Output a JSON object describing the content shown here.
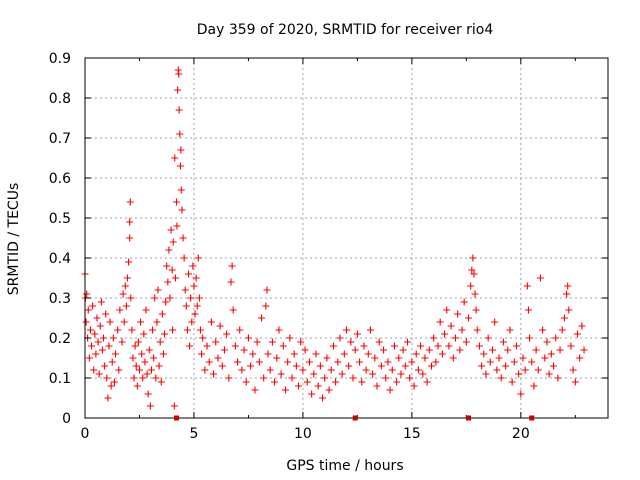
{
  "chart_data": {
    "type": "scatter",
    "title": "Day 359 of 2020, SRMTID for receiver rio4",
    "xlabel": "GPS time / hours",
    "ylabel": "SRMTID / TECUs",
    "xlim": [
      0,
      24
    ],
    "ylim": [
      0,
      0.9
    ],
    "xticks": [
      0,
      5,
      10,
      15,
      20
    ],
    "xtick_labels": [
      "0",
      "5",
      "10",
      "15",
      "20"
    ],
    "yticks": [
      0,
      0.1,
      0.2,
      0.3,
      0.4,
      0.5,
      0.6,
      0.7,
      0.8,
      0.9
    ],
    "ytick_labels": [
      "0",
      "0.1",
      "0.2",
      "0.3",
      "0.4",
      "0.5",
      "0.6",
      "0.7",
      "0.8",
      "0.9"
    ],
    "grid": true,
    "legend": "none",
    "marker": "+",
    "colors": {
      "series": "#ff0000",
      "axis_marks": "#cc0000",
      "grid": "#a0a0a0",
      "frame": "#000000"
    },
    "series": [
      {
        "name": "SRMTID",
        "points": [
          [
            0.0,
            0.36
          ],
          [
            0.02,
            0.3
          ],
          [
            0.05,
            0.24
          ],
          [
            0.08,
            0.31
          ],
          [
            0.12,
            0.2
          ],
          [
            0.15,
            0.27
          ],
          [
            0.2,
            0.15
          ],
          [
            0.25,
            0.22
          ],
          [
            0.3,
            0.18
          ],
          [
            0.35,
            0.28
          ],
          [
            0.4,
            0.12
          ],
          [
            0.45,
            0.21
          ],
          [
            0.5,
            0.16
          ],
          [
            0.55,
            0.25
          ],
          [
            0.6,
            0.19
          ],
          [
            0.65,
            0.11
          ],
          [
            0.7,
            0.23
          ],
          [
            0.75,
            0.29
          ],
          [
            0.8,
            0.17
          ],
          [
            0.85,
            0.2
          ],
          [
            0.9,
            0.13
          ],
          [
            0.95,
            0.26
          ],
          [
            1.0,
            0.1
          ],
          [
            1.05,
            0.05
          ],
          [
            1.1,
            0.18
          ],
          [
            1.15,
            0.24
          ],
          [
            1.2,
            0.08
          ],
          [
            1.25,
            0.14
          ],
          [
            1.3,
            0.2
          ],
          [
            1.35,
            0.09
          ],
          [
            1.4,
            0.16
          ],
          [
            1.5,
            0.22
          ],
          [
            1.55,
            0.12
          ],
          [
            1.6,
            0.27
          ],
          [
            1.7,
            0.19
          ],
          [
            1.75,
            0.31
          ],
          [
            1.8,
            0.24
          ],
          [
            1.85,
            0.33
          ],
          [
            1.9,
            0.28
          ],
          [
            1.95,
            0.35
          ],
          [
            2.0,
            0.39
          ],
          [
            2.05,
            0.45
          ],
          [
            2.05,
            0.49
          ],
          [
            2.08,
            0.54
          ],
          [
            2.1,
            0.3
          ],
          [
            2.15,
            0.22
          ],
          [
            2.2,
            0.15
          ],
          [
            2.25,
            0.1
          ],
          [
            2.3,
            0.18
          ],
          [
            2.35,
            0.13
          ],
          [
            2.4,
            0.08
          ],
          [
            2.45,
            0.19
          ],
          [
            2.5,
            0.12
          ],
          [
            2.55,
            0.24
          ],
          [
            2.6,
            0.16
          ],
          [
            2.65,
            0.1
          ],
          [
            2.7,
            0.21
          ],
          [
            2.75,
            0.14
          ],
          [
            2.8,
            0.27
          ],
          [
            2.85,
            0.11
          ],
          [
            2.9,
            0.06
          ],
          [
            2.95,
            0.17
          ],
          [
            3.0,
            0.03
          ],
          [
            3.05,
            0.12
          ],
          [
            3.1,
            0.22
          ],
          [
            3.15,
            0.15
          ],
          [
            3.2,
            0.3
          ],
          [
            3.25,
            0.1
          ],
          [
            3.3,
            0.24
          ],
          [
            3.35,
            0.32
          ],
          [
            3.4,
            0.13
          ],
          [
            3.45,
            0.19
          ],
          [
            3.5,
            0.09
          ],
          [
            3.55,
            0.26
          ],
          [
            3.6,
            0.16
          ],
          [
            3.65,
            0.21
          ],
          [
            3.7,
            0.29
          ],
          [
            3.75,
            0.38
          ],
          [
            3.8,
            0.34
          ],
          [
            3.85,
            0.42
          ],
          [
            3.9,
            0.3
          ],
          [
            3.95,
            0.47
          ],
          [
            4.0,
            0.37
          ],
          [
            4.02,
            0.22
          ],
          [
            4.05,
            0.44
          ],
          [
            4.1,
            0.03
          ],
          [
            4.12,
            0.65
          ],
          [
            4.15,
            0.35
          ],
          [
            4.2,
            0.54
          ],
          [
            4.22,
            0.48
          ],
          [
            4.25,
            0.82
          ],
          [
            4.28,
            0.87
          ],
          [
            4.3,
            0.86
          ],
          [
            4.32,
            0.77
          ],
          [
            4.35,
            0.71
          ],
          [
            4.38,
            0.63
          ],
          [
            4.4,
            0.67
          ],
          [
            4.42,
            0.57
          ],
          [
            4.45,
            0.52
          ],
          [
            4.5,
            0.45
          ],
          [
            4.55,
            0.4
          ],
          [
            4.6,
            0.32
          ],
          [
            4.65,
            0.28
          ],
          [
            4.7,
            0.22
          ],
          [
            4.75,
            0.36
          ],
          [
            4.8,
            0.18
          ],
          [
            4.85,
            0.3
          ],
          [
            4.9,
            0.24
          ],
          [
            4.95,
            0.38
          ],
          [
            5.0,
            0.33
          ],
          [
            5.05,
            0.26
          ],
          [
            5.1,
            0.35
          ],
          [
            5.15,
            0.28
          ],
          [
            5.2,
            0.4
          ],
          [
            5.25,
            0.3
          ],
          [
            5.3,
            0.22
          ],
          [
            5.35,
            0.16
          ],
          [
            5.4,
            0.2
          ],
          [
            5.5,
            0.12
          ],
          [
            5.6,
            0.18
          ],
          [
            5.7,
            0.14
          ],
          [
            5.8,
            0.24
          ],
          [
            5.9,
            0.11
          ],
          [
            6.0,
            0.19
          ],
          [
            6.1,
            0.15
          ],
          [
            6.2,
            0.23
          ],
          [
            6.3,
            0.13
          ],
          [
            6.4,
            0.17
          ],
          [
            6.5,
            0.21
          ],
          [
            6.6,
            0.1
          ],
          [
            6.7,
            0.34
          ],
          [
            6.75,
            0.38
          ],
          [
            6.8,
            0.27
          ],
          [
            6.9,
            0.18
          ],
          [
            7.0,
            0.14
          ],
          [
            7.1,
            0.22
          ],
          [
            7.2,
            0.12
          ],
          [
            7.3,
            0.17
          ],
          [
            7.4,
            0.09
          ],
          [
            7.5,
            0.2
          ],
          [
            7.6,
            0.13
          ],
          [
            7.7,
            0.16
          ],
          [
            7.8,
            0.07
          ],
          [
            7.9,
            0.19
          ],
          [
            8.0,
            0.14
          ],
          [
            8.1,
            0.25
          ],
          [
            8.2,
            0.1
          ],
          [
            8.3,
            0.28
          ],
          [
            8.35,
            0.32
          ],
          [
            8.4,
            0.16
          ],
          [
            8.5,
            0.12
          ],
          [
            8.6,
            0.19
          ],
          [
            8.7,
            0.09
          ],
          [
            8.8,
            0.15
          ],
          [
            8.9,
            0.22
          ],
          [
            9.0,
            0.11
          ],
          [
            9.1,
            0.18
          ],
          [
            9.2,
            0.07
          ],
          [
            9.3,
            0.14
          ],
          [
            9.4,
            0.2
          ],
          [
            9.5,
            0.1
          ],
          [
            9.6,
            0.16
          ],
          [
            9.7,
            0.13
          ],
          [
            9.8,
            0.08
          ],
          [
            9.9,
            0.19
          ],
          [
            10.0,
            0.12
          ],
          [
            10.1,
            0.17
          ],
          [
            10.2,
            0.09
          ],
          [
            10.3,
            0.14
          ],
          [
            10.4,
            0.06
          ],
          [
            10.5,
            0.11
          ],
          [
            10.6,
            0.16
          ],
          [
            10.7,
            0.08
          ],
          [
            10.8,
            0.13
          ],
          [
            10.9,
            0.05
          ],
          [
            11.0,
            0.1
          ],
          [
            11.1,
            0.15
          ],
          [
            11.2,
            0.07
          ],
          [
            11.3,
            0.12
          ],
          [
            11.4,
            0.18
          ],
          [
            11.5,
            0.09
          ],
          [
            11.6,
            0.14
          ],
          [
            11.7,
            0.2
          ],
          [
            11.8,
            0.11
          ],
          [
            11.9,
            0.16
          ],
          [
            12.0,
            0.22
          ],
          [
            12.1,
            0.13
          ],
          [
            12.2,
            0.19
          ],
          [
            12.3,
            0.1
          ],
          [
            12.4,
            0.17
          ],
          [
            12.5,
            0.21
          ],
          [
            12.6,
            0.14
          ],
          [
            12.7,
            0.09
          ],
          [
            12.8,
            0.18
          ],
          [
            12.9,
            0.12
          ],
          [
            13.0,
            0.16
          ],
          [
            13.1,
            0.22
          ],
          [
            13.2,
            0.11
          ],
          [
            13.3,
            0.15
          ],
          [
            13.4,
            0.08
          ],
          [
            13.5,
            0.19
          ],
          [
            13.6,
            0.13
          ],
          [
            13.7,
            0.17
          ],
          [
            13.8,
            0.1
          ],
          [
            13.9,
            0.14
          ],
          [
            14.0,
            0.07
          ],
          [
            14.1,
            0.12
          ],
          [
            14.2,
            0.18
          ],
          [
            14.3,
            0.09
          ],
          [
            14.4,
            0.15
          ],
          [
            14.5,
            0.11
          ],
          [
            14.6,
            0.17
          ],
          [
            14.7,
            0.13
          ],
          [
            14.8,
            0.19
          ],
          [
            14.9,
            0.1
          ],
          [
            15.0,
            0.14
          ],
          [
            15.1,
            0.08
          ],
          [
            15.2,
            0.16
          ],
          [
            15.3,
            0.12
          ],
          [
            15.4,
            0.18
          ],
          [
            15.5,
            0.11
          ],
          [
            15.6,
            0.15
          ],
          [
            15.7,
            0.09
          ],
          [
            15.8,
            0.17
          ],
          [
            15.9,
            0.13
          ],
          [
            16.0,
            0.2
          ],
          [
            16.1,
            0.14
          ],
          [
            16.2,
            0.18
          ],
          [
            16.3,
            0.24
          ],
          [
            16.4,
            0.16
          ],
          [
            16.5,
            0.21
          ],
          [
            16.6,
            0.27
          ],
          [
            16.7,
            0.18
          ],
          [
            16.8,
            0.23
          ],
          [
            16.9,
            0.15
          ],
          [
            17.0,
            0.2
          ],
          [
            17.1,
            0.26
          ],
          [
            17.2,
            0.17
          ],
          [
            17.3,
            0.22
          ],
          [
            17.4,
            0.29
          ],
          [
            17.5,
            0.19
          ],
          [
            17.6,
            0.25
          ],
          [
            17.7,
            0.33
          ],
          [
            17.75,
            0.37
          ],
          [
            17.8,
            0.4
          ],
          [
            17.85,
            0.36
          ],
          [
            17.9,
            0.31
          ],
          [
            17.95,
            0.27
          ],
          [
            18.0,
            0.22
          ],
          [
            18.1,
            0.18
          ],
          [
            18.2,
            0.13
          ],
          [
            18.3,
            0.16
          ],
          [
            18.4,
            0.11
          ],
          [
            18.5,
            0.2
          ],
          [
            18.6,
            0.14
          ],
          [
            18.7,
            0.17
          ],
          [
            18.8,
            0.24
          ],
          [
            18.9,
            0.12
          ],
          [
            19.0,
            0.15
          ],
          [
            19.1,
            0.1
          ],
          [
            19.2,
            0.19
          ],
          [
            19.3,
            0.13
          ],
          [
            19.4,
            0.17
          ],
          [
            19.5,
            0.22
          ],
          [
            19.6,
            0.09
          ],
          [
            19.7,
            0.14
          ],
          [
            19.8,
            0.18
          ],
          [
            19.9,
            0.11
          ],
          [
            20.0,
            0.06
          ],
          [
            20.1,
            0.15
          ],
          [
            20.2,
            0.12
          ],
          [
            20.3,
            0.33
          ],
          [
            20.35,
            0.27
          ],
          [
            20.4,
            0.2
          ],
          [
            20.5,
            0.14
          ],
          [
            20.6,
            0.08
          ],
          [
            20.7,
            0.17
          ],
          [
            20.8,
            0.12
          ],
          [
            20.9,
            0.35
          ],
          [
            21.0,
            0.22
          ],
          [
            21.1,
            0.15
          ],
          [
            21.2,
            0.19
          ],
          [
            21.3,
            0.11
          ],
          [
            21.4,
            0.16
          ],
          [
            21.5,
            0.13
          ],
          [
            21.6,
            0.2
          ],
          [
            21.7,
            0.1
          ],
          [
            21.8,
            0.17
          ],
          [
            21.9,
            0.22
          ],
          [
            22.0,
            0.25
          ],
          [
            22.1,
            0.31
          ],
          [
            22.15,
            0.33
          ],
          [
            22.2,
            0.27
          ],
          [
            22.3,
            0.18
          ],
          [
            22.4,
            0.12
          ],
          [
            22.5,
            0.09
          ],
          [
            22.6,
            0.21
          ],
          [
            22.7,
            0.15
          ],
          [
            22.8,
            0.23
          ],
          [
            22.9,
            0.17
          ]
        ]
      }
    ]
  }
}
